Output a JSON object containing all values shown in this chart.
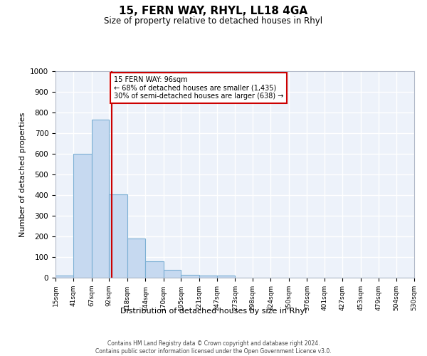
{
  "title": "15, FERN WAY, RHYL, LL18 4GA",
  "subtitle": "Size of property relative to detached houses in Rhyl",
  "xlabel": "Distribution of detached houses by size in Rhyl",
  "ylabel": "Number of detached properties",
  "bar_color": "#c6d9f0",
  "bar_edge_color": "#7bafd4",
  "background_color": "#edf2fa",
  "grid_color": "#ffffff",
  "vline_color": "#cc0000",
  "vline_x": 96,
  "annotation_text": "15 FERN WAY: 96sqm\n← 68% of detached houses are smaller (1,435)\n30% of semi-detached houses are larger (638) →",
  "annotation_box_color": "#ffffff",
  "annotation_box_edge_color": "#cc0000",
  "footer_text": "Contains HM Land Registry data © Crown copyright and database right 2024.\nContains public sector information licensed under the Open Government Licence v3.0.",
  "bin_edges": [
    15,
    41,
    67,
    92,
    118,
    144,
    170,
    195,
    221,
    247,
    273,
    298,
    324,
    350,
    376,
    401,
    427,
    453,
    479,
    504,
    530
  ],
  "bar_heights": [
    10,
    600,
    765,
    405,
    188,
    78,
    38,
    15,
    10,
    10,
    0,
    0,
    0,
    0,
    0,
    0,
    0,
    0,
    0,
    0
  ],
  "ylim": [
    0,
    1000
  ],
  "xlim": [
    15,
    530
  ]
}
